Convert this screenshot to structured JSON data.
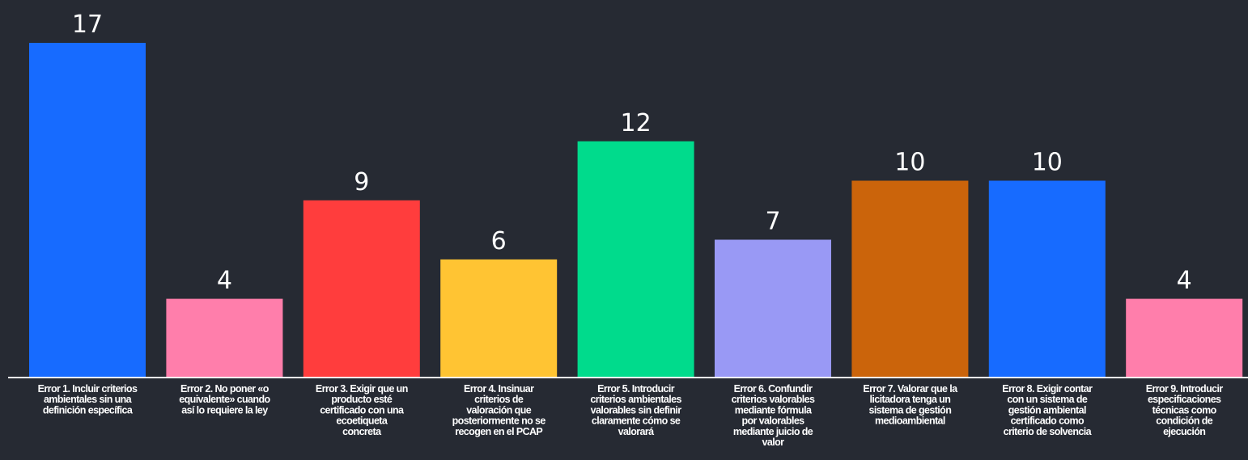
{
  "chart_data": {
    "type": "bar",
    "title": "",
    "xlabel": "",
    "ylabel": "",
    "ylim": [
      0,
      17
    ],
    "grid": false,
    "legend": "none",
    "categories": [
      "Error 1. Incluir criterios ambientales sin una definición específica",
      "Error 2. No poner «o equivalente» cuando así lo requiere la ley",
      "Error 3. Exigir que un producto esté certificado con una ecoetiqueta concreta",
      "Error 4. Insinuar criterios de valoración que posteriormente no se recogen en el PCAP",
      "Error 5. Introducir criterios ambientales valorables sin definir claramente cómo se valorará",
      "Error 6. Confundir criterios valorables mediante fórmula por valorables mediante juicio de valor",
      "Error 7. Valorar que la licitadora tenga un sistema de gestión medioambiental",
      "Error 8. Exigir contar con un sistema de gestión ambiental certificado como criterio de solvencia",
      "Error 9. Introducir especificaciones técnicas como condición de ejecución"
    ],
    "category_lines": [
      [
        "Error 1. Incluir criterios",
        "ambientales sin una",
        "definición específica"
      ],
      [
        "Error 2. No poner «o",
        "equivalente» cuando",
        "así lo requiere la ley"
      ],
      [
        "Error 3. Exigir que un",
        "producto esté",
        "certificado con una",
        "ecoetiqueta",
        "concreta"
      ],
      [
        "Error 4. Insinuar",
        "criterios de",
        "valoración que",
        "posteriormente no se",
        "recogen en el PCAP"
      ],
      [
        "Error 5. Introducir",
        "criterios ambientales",
        "valorables sin definir",
        "claramente cómo se",
        "valorará"
      ],
      [
        "Error 6. Confundir",
        "criterios valorables",
        "mediante fórmula",
        "por valorables",
        "mediante juicio de",
        "valor"
      ],
      [
        "Error 7. Valorar que la",
        "licitadora tenga un",
        "sistema de gestión",
        "medioambiental"
      ],
      [
        "Error 8. Exigir contar",
        "con un sistema de",
        "gestión ambiental",
        "certificado como",
        "criterio de solvencia"
      ],
      [
        "Error 9. Introducir",
        "especificaciones",
        "técnicas como",
        "condición de",
        "ejecución"
      ]
    ],
    "values": [
      17,
      4,
      9,
      6,
      12,
      7,
      10,
      10,
      4
    ],
    "colors": [
      "#176bff",
      "#ff7eab",
      "#ff3d3d",
      "#ffc433",
      "#00db8c",
      "#9999f5",
      "#cb640b",
      "#176bff",
      "#ff7eab"
    ]
  },
  "theme": {
    "background": "#262a33",
    "text": "#ffffff",
    "axis": "#ffffff"
  }
}
